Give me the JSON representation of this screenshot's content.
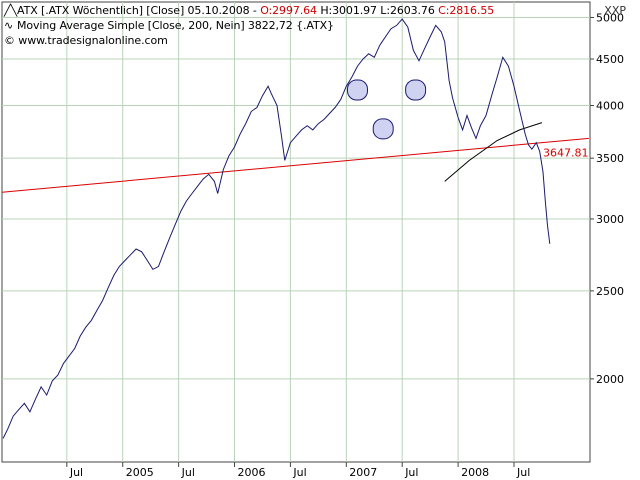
{
  "chart_data": {
    "type": "line",
    "unit_label": "XXP",
    "y_scale": "log",
    "ylim": [
      1620,
      5200
    ],
    "xlim": [
      2003.92,
      2009.18
    ],
    "y_ticks": [
      "5000",
      "4500",
      "4000",
      "3500",
      "3000",
      "2500",
      "2000"
    ],
    "y_tick_values": [
      5000,
      4500,
      4000,
      3500,
      3000,
      2500,
      2000
    ],
    "x_ticks": [
      {
        "label": "Jul",
        "x": 2004.5
      },
      {
        "label": "2005",
        "x": 2005.0
      },
      {
        "label": "Jul",
        "x": 2005.5
      },
      {
        "label": "2006",
        "x": 2006.0
      },
      {
        "label": "Jul",
        "x": 2006.5
      },
      {
        "label": "2007",
        "x": 2007.0
      },
      {
        "label": "Jul",
        "x": 2007.5
      },
      {
        "label": "2008",
        "x": 2008.0
      },
      {
        "label": "Jul",
        "x": 2008.5
      }
    ],
    "grid": true,
    "legend": [
      {
        "glyph": "╱╲",
        "parts": [
          {
            "text": "ATX [.ATX  Wöchentlich] [Close] 05.10.2008 - ",
            "color": "#000000"
          },
          {
            "text": "O:2997.64",
            "color": "#cc0000"
          },
          {
            "text": " H:3001.97 L:2603.76 ",
            "color": "#000000"
          },
          {
            "text": "C:2816.55",
            "color": "#cc0000"
          }
        ]
      },
      {
        "glyph": "∿",
        "parts": [
          {
            "text": "Moving Average Simple [Close, 200, Nein] 3822,72 {.ATX}",
            "color": "#000000"
          }
        ]
      },
      {
        "glyph": "©",
        "parts": [
          {
            "text": " www.tradesignalonline.com",
            "color": "#000000"
          }
        ]
      }
    ],
    "series": [
      {
        "color": "#1a1a6e",
        "points": [
          [
            2003.93,
            1720
          ],
          [
            2003.97,
            1760
          ],
          [
            2004.02,
            1820
          ],
          [
            2004.07,
            1850
          ],
          [
            2004.12,
            1880
          ],
          [
            2004.17,
            1840
          ],
          [
            2004.22,
            1900
          ],
          [
            2004.27,
            1960
          ],
          [
            2004.32,
            1920
          ],
          [
            2004.37,
            1990
          ],
          [
            2004.42,
            2020
          ],
          [
            2004.47,
            2080
          ],
          [
            2004.52,
            2120
          ],
          [
            2004.57,
            2160
          ],
          [
            2004.62,
            2230
          ],
          [
            2004.67,
            2280
          ],
          [
            2004.72,
            2320
          ],
          [
            2004.77,
            2380
          ],
          [
            2004.82,
            2440
          ],
          [
            2004.87,
            2520
          ],
          [
            2004.92,
            2600
          ],
          [
            2004.97,
            2660
          ],
          [
            2005.02,
            2700
          ],
          [
            2005.07,
            2740
          ],
          [
            2005.12,
            2780
          ],
          [
            2005.17,
            2760
          ],
          [
            2005.22,
            2700
          ],
          [
            2005.27,
            2640
          ],
          [
            2005.32,
            2660
          ],
          [
            2005.37,
            2760
          ],
          [
            2005.42,
            2860
          ],
          [
            2005.47,
            2960
          ],
          [
            2005.52,
            3060
          ],
          [
            2005.57,
            3140
          ],
          [
            2005.62,
            3200
          ],
          [
            2005.67,
            3260
          ],
          [
            2005.72,
            3320
          ],
          [
            2005.77,
            3360
          ],
          [
            2005.82,
            3300
          ],
          [
            2005.85,
            3200
          ],
          [
            2005.9,
            3400
          ],
          [
            2005.95,
            3520
          ],
          [
            2006.0,
            3600
          ],
          [
            2006.05,
            3720
          ],
          [
            2006.1,
            3820
          ],
          [
            2006.15,
            3940
          ],
          [
            2006.2,
            3980
          ],
          [
            2006.25,
            4100
          ],
          [
            2006.3,
            4200
          ],
          [
            2006.33,
            4120
          ],
          [
            2006.38,
            4000
          ],
          [
            2006.42,
            3700
          ],
          [
            2006.45,
            3480
          ],
          [
            2006.5,
            3640
          ],
          [
            2006.55,
            3700
          ],
          [
            2006.6,
            3760
          ],
          [
            2006.65,
            3800
          ],
          [
            2006.7,
            3760
          ],
          [
            2006.75,
            3820
          ],
          [
            2006.8,
            3860
          ],
          [
            2006.85,
            3920
          ],
          [
            2006.9,
            3980
          ],
          [
            2006.95,
            4060
          ],
          [
            2007.0,
            4200
          ],
          [
            2007.05,
            4300
          ],
          [
            2007.1,
            4420
          ],
          [
            2007.15,
            4500
          ],
          [
            2007.2,
            4560
          ],
          [
            2007.25,
            4520
          ],
          [
            2007.3,
            4660
          ],
          [
            2007.35,
            4760
          ],
          [
            2007.4,
            4860
          ],
          [
            2007.45,
            4900
          ],
          [
            2007.5,
            4980
          ],
          [
            2007.55,
            4880
          ],
          [
            2007.6,
            4600
          ],
          [
            2007.65,
            4480
          ],
          [
            2007.7,
            4620
          ],
          [
            2007.75,
            4760
          ],
          [
            2007.8,
            4900
          ],
          [
            2007.85,
            4820
          ],
          [
            2007.88,
            4700
          ],
          [
            2007.92,
            4260
          ],
          [
            2007.95,
            4080
          ],
          [
            2008.0,
            3880
          ],
          [
            2008.04,
            3760
          ],
          [
            2008.08,
            3900
          ],
          [
            2008.12,
            3780
          ],
          [
            2008.16,
            3680
          ],
          [
            2008.2,
            3800
          ],
          [
            2008.25,
            3900
          ],
          [
            2008.3,
            4100
          ],
          [
            2008.35,
            4300
          ],
          [
            2008.4,
            4520
          ],
          [
            2008.45,
            4420
          ],
          [
            2008.5,
            4200
          ],
          [
            2008.55,
            3950
          ],
          [
            2008.6,
            3720
          ],
          [
            2008.63,
            3620
          ],
          [
            2008.66,
            3580
          ],
          [
            2008.7,
            3640
          ],
          [
            2008.73,
            3560
          ],
          [
            2008.76,
            3380
          ],
          [
            2008.78,
            3140
          ],
          [
            2008.8,
            2950
          ],
          [
            2008.82,
            2816.55
          ]
        ]
      }
    ],
    "moving_average": {
      "color": "#dd0000",
      "from": [
        2003.92,
        3210
      ],
      "to": [
        2009.17,
        3680
      ],
      "label": "3647.81"
    },
    "trend_curve": {
      "color": "#000000",
      "points": [
        [
          2007.88,
          3300
        ],
        [
          2008.1,
          3480
        ],
        [
          2008.35,
          3660
        ],
        [
          2008.55,
          3760
        ],
        [
          2008.75,
          3830
        ]
      ]
    },
    "markers": [
      {
        "x": 2007.1,
        "y": 4160
      },
      {
        "x": 2007.33,
        "y": 3770
      },
      {
        "x": 2007.62,
        "y": 4160
      }
    ]
  }
}
